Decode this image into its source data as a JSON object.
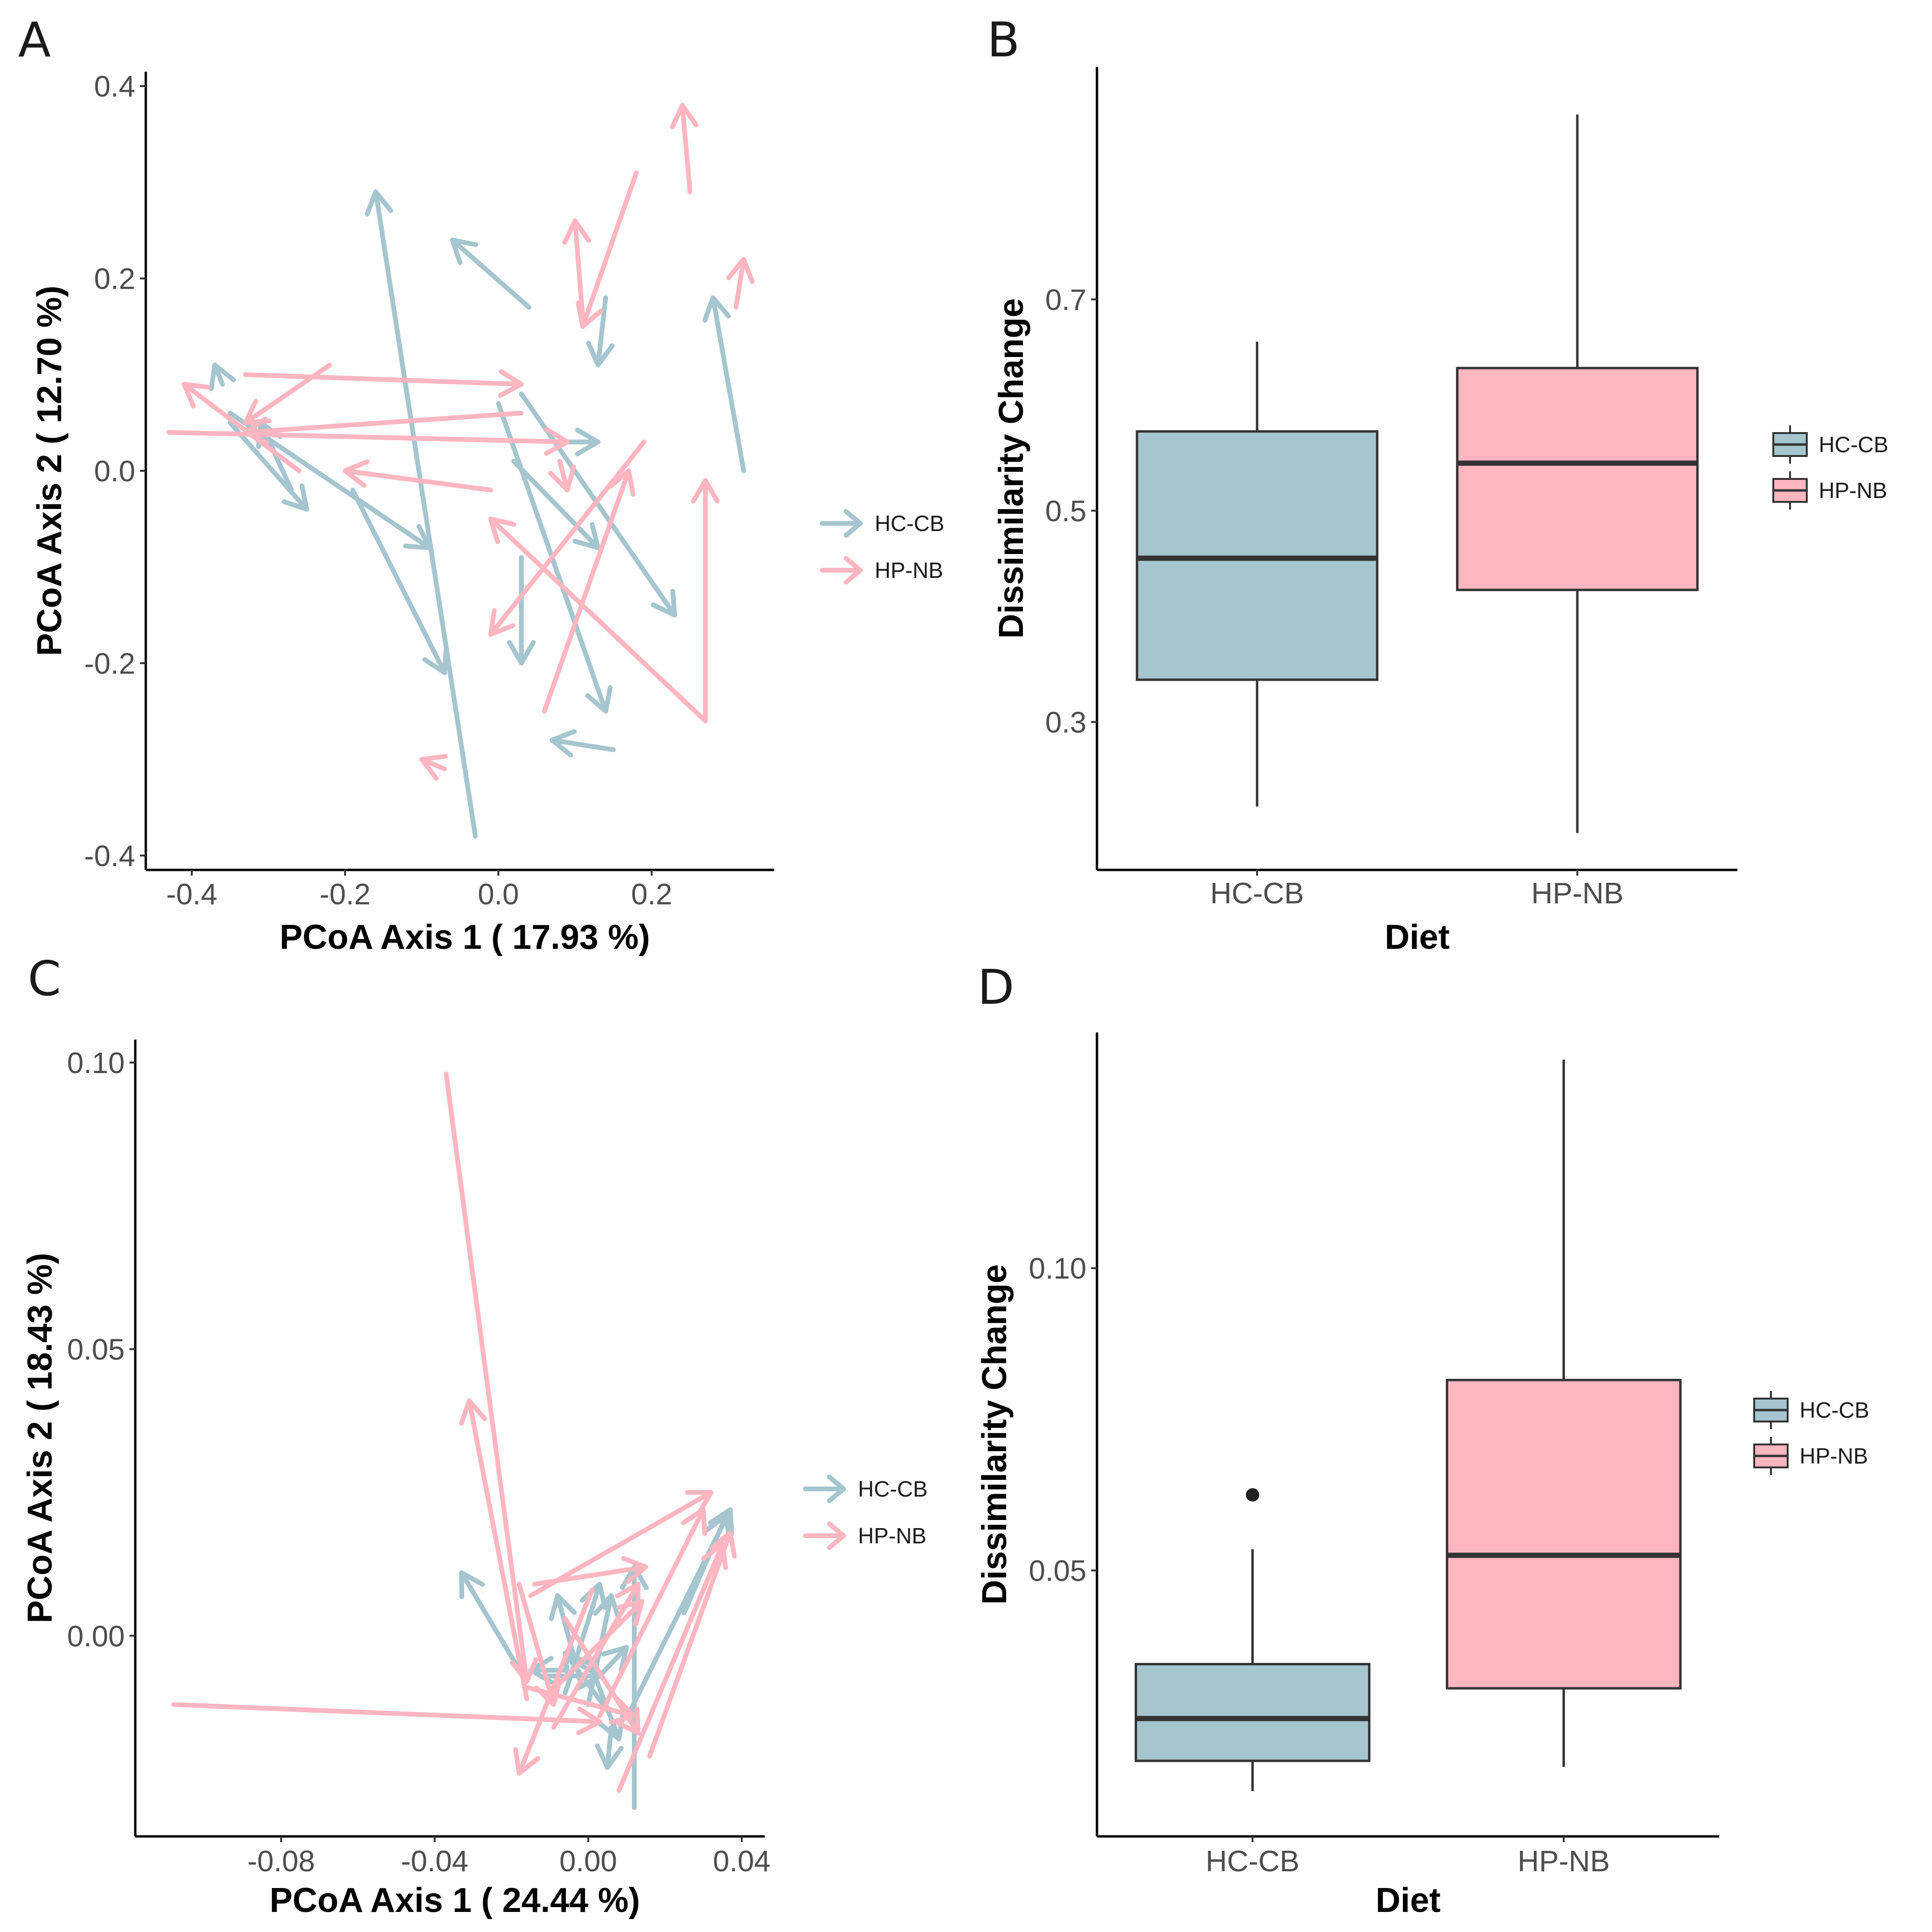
{
  "colors": {
    "HC-CB": "#a5c5cf",
    "HP-NB": "#ffb6c1",
    "box_line": "#333333"
  },
  "chart_data": [
    {
      "panel": "A",
      "type": "arrow-scatter",
      "xlabel": "PCoA Axis 1 ( 17.93 %)",
      "ylabel": "PCoA Axis 2 ( 12.70 %)",
      "xlim": [
        -0.46,
        0.36
      ],
      "ylim": [
        -0.415,
        0.415
      ],
      "xticks": [
        -0.4,
        -0.2,
        0.0,
        0.2
      ],
      "xtick_labels": [
        "-0.4",
        "-0.2",
        "0.0",
        "0.2"
      ],
      "yticks": [
        -0.4,
        -0.2,
        0.0,
        0.2,
        0.4
      ],
      "ytick_labels": [
        "-0.4",
        "-0.2",
        "0.0",
        "0.2",
        "0.4"
      ],
      "legend": [
        "HC-CB",
        "HP-NB"
      ],
      "series": [
        {
          "name": "HC-CB",
          "arrows": [
            [
              -0.03,
              -0.38,
              -0.16,
              0.29
            ],
            [
              0.04,
              0.17,
              -0.06,
              0.24
            ],
            [
              -0.35,
              0.06,
              -0.09,
              -0.08
            ],
            [
              -0.19,
              -0.02,
              -0.07,
              -0.21
            ],
            [
              -0.35,
              0.05,
              -0.25,
              -0.04
            ],
            [
              -0.27,
              -0.02,
              -0.31,
              0.05
            ],
            [
              0.03,
              0.08,
              0.23,
              -0.15
            ],
            [
              0.0,
              0.07,
              0.14,
              -0.25
            ],
            [
              0.02,
              0.01,
              0.13,
              -0.08
            ],
            [
              0.03,
              -0.09,
              0.03,
              -0.2
            ],
            [
              0.15,
              -0.29,
              0.07,
              -0.28
            ],
            [
              0.32,
              0.0,
              0.28,
              0.18
            ],
            [
              0.14,
              0.18,
              0.13,
              0.11
            ],
            [
              -0.36,
              0.09,
              -0.37,
              0.11
            ],
            [
              0.09,
              0.03,
              0.13,
              0.03
            ]
          ]
        },
        {
          "name": "HP-NB",
          "arrows": [
            [
              0.25,
              0.29,
              0.24,
              0.38
            ],
            [
              0.18,
              0.31,
              0.11,
              0.15
            ],
            [
              0.11,
              0.16,
              0.1,
              0.26
            ],
            [
              0.31,
              0.17,
              0.32,
              0.22
            ],
            [
              -0.33,
              0.1,
              0.03,
              0.09
            ],
            [
              -0.43,
              0.04,
              0.09,
              0.03
            ],
            [
              0.03,
              0.06,
              -0.33,
              0.04
            ],
            [
              -0.22,
              0.11,
              -0.33,
              0.05
            ],
            [
              -0.26,
              0.0,
              -0.41,
              0.09
            ],
            [
              -0.01,
              -0.02,
              -0.2,
              0.0
            ],
            [
              0.19,
              0.03,
              -0.01,
              -0.17
            ],
            [
              0.06,
              -0.25,
              0.17,
              0.0
            ],
            [
              0.27,
              -0.26,
              -0.01,
              -0.05
            ],
            [
              0.27,
              -0.26,
              0.27,
              -0.01
            ],
            [
              -0.07,
              -0.31,
              -0.1,
              -0.3
            ],
            [
              0.08,
              0.01,
              0.09,
              -0.02
            ]
          ]
        }
      ]
    },
    {
      "panel": "B",
      "type": "box",
      "xlabel": "Diet",
      "ylabel": "Dissimilarity Change",
      "categories": [
        "HC-CB",
        "HP-NB"
      ],
      "ylim": [
        0.16,
        0.92
      ],
      "yticks": [
        0.3,
        0.5,
        0.7
      ],
      "ytick_labels": [
        "0.3",
        "0.5",
        "0.7"
      ],
      "legend": [
        "HC-CB",
        "HP-NB"
      ],
      "boxes": [
        {
          "name": "HC-CB",
          "min": 0.22,
          "q1": 0.34,
          "median": 0.455,
          "q3": 0.575,
          "max": 0.66,
          "outliers": []
        },
        {
          "name": "HP-NB",
          "min": 0.195,
          "q1": 0.425,
          "median": 0.545,
          "q3": 0.635,
          "max": 0.875,
          "outliers": []
        }
      ]
    },
    {
      "panel": "C",
      "type": "arrow-scatter",
      "xlabel": "PCoA Axis 1 ( 24.44 %)",
      "ylabel": "PCoA Axis 2 ( 18.43 %)",
      "xlim": [
        -0.118,
        0.046
      ],
      "ylim": [
        -0.035,
        0.104
      ],
      "xticks": [
        -0.08,
        -0.04,
        0.0,
        0.04
      ],
      "xtick_labels": [
        "-0.08",
        "-0.04",
        "0.00",
        "0.04"
      ],
      "yticks": [
        0.0,
        0.05,
        0.1
      ],
      "ytick_labels": [
        "0.00",
        "0.05",
        "0.10"
      ],
      "legend": [
        "HC-CB",
        "HP-NB"
      ],
      "series": [
        {
          "name": "HC-CB",
          "arrows": [
            [
              -0.017,
              -0.007,
              -0.033,
              0.011
            ],
            [
              0.012,
              -0.03,
              0.012,
              0.012
            ],
            [
              0.011,
              -0.013,
              0.037,
              0.022
            ],
            [
              0.025,
              0.004,
              0.036,
              0.021
            ],
            [
              -0.006,
              -0.01,
              0.003,
              0.009
            ],
            [
              0.0,
              -0.012,
              0.006,
              0.007
            ],
            [
              0.005,
              -0.013,
              -0.006,
              -0.003
            ],
            [
              0.0,
              -0.004,
              0.008,
              -0.018
            ],
            [
              -0.002,
              -0.008,
              -0.008,
              0.007
            ],
            [
              -0.011,
              -0.007,
              0.003,
              -0.007
            ],
            [
              -0.006,
              -0.006,
              -0.015,
              -0.006
            ],
            [
              0.003,
              -0.007,
              0.01,
              -0.002
            ],
            [
              0.006,
              -0.016,
              0.005,
              -0.023
            ]
          ]
        },
        {
          "name": "HP-NB",
          "arrows": [
            [
              -0.037,
              0.098,
              -0.016,
              -0.008
            ],
            [
              -0.016,
              -0.011,
              -0.031,
              0.041
            ],
            [
              -0.018,
              0.009,
              -0.009,
              -0.012
            ],
            [
              -0.015,
              0.007,
              0.032,
              0.025
            ],
            [
              -0.108,
              -0.012,
              0.003,
              -0.015
            ],
            [
              0.016,
              -0.021,
              0.037,
              0.018
            ],
            [
              0.008,
              -0.027,
              0.035,
              0.016
            ],
            [
              0.003,
              -0.014,
              0.03,
              0.022
            ],
            [
              -0.009,
              -0.016,
              0.013,
              0.009
            ],
            [
              -0.006,
              0.003,
              0.013,
              -0.017
            ],
            [
              0.001,
              0.008,
              -0.018,
              -0.024
            ],
            [
              -0.01,
              -0.01,
              0.014,
              0.006
            ],
            [
              -0.014,
              0.009,
              0.015,
              0.012
            ],
            [
              -0.016,
              -0.009,
              0.012,
              -0.014
            ]
          ]
        }
      ]
    },
    {
      "panel": "D",
      "type": "box",
      "xlabel": "Diet",
      "ylabel": "Dissimilarity Change",
      "categories": [
        "HC-CB",
        "HP-NB"
      ],
      "ylim": [
        0.006,
        0.139
      ],
      "yticks": [
        0.05,
        0.1
      ],
      "ytick_labels": [
        "0.05",
        "0.10"
      ],
      "legend": [
        "HC-CB",
        "HP-NB"
      ],
      "boxes": [
        {
          "name": "HC-CB",
          "min": 0.0135,
          "q1": 0.0185,
          "median": 0.0255,
          "q3": 0.0345,
          "max": 0.0535,
          "outliers": [
            0.0625
          ]
        },
        {
          "name": "HP-NB",
          "min": 0.0175,
          "q1": 0.0305,
          "median": 0.0525,
          "q3": 0.0815,
          "max": 0.1345,
          "outliers": []
        }
      ]
    }
  ]
}
